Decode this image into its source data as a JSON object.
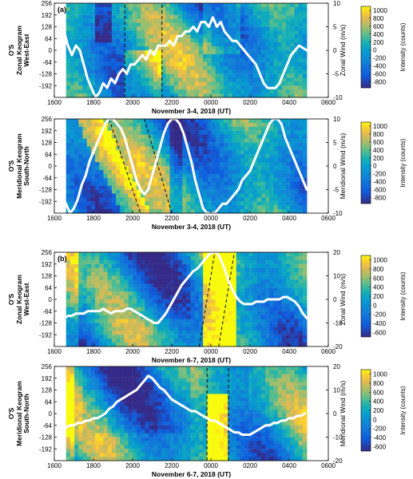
{
  "chart_data": [
    {
      "type": "heatmap",
      "panel_label": "(a)",
      "xlabel": "November 3-4, 2018 (UT)",
      "ylabel_lines": [
        "O'S",
        "Zonal Keogram",
        "West-East"
      ],
      "y2label": "Zonal Wind (m/s)",
      "cbar_label": "Intensity (counts)",
      "x_ticks": [
        "1600",
        "1800",
        "2000",
        "2200",
        "0000",
        "0200",
        "0400",
        "0600"
      ],
      "y_ticks": [
        256,
        192,
        128,
        64,
        0,
        -64,
        -128,
        -192
      ],
      "y2_ticks": [
        10,
        5,
        0,
        -5,
        -10
      ],
      "ylim": [
        -256,
        256
      ],
      "y2lim": [
        -10,
        10
      ],
      "cbar_ticks": [
        1000,
        800,
        600,
        400,
        200,
        0,
        -200,
        -400,
        -600,
        -800
      ],
      "clim": [
        -950,
        1100
      ],
      "dashed_lines": [
        [
          19.6,
          19.6,
          -256,
          256
        ],
        [
          21.5,
          21.5,
          -256,
          256
        ]
      ],
      "wind_series": {
        "name": "",
        "x": [
          16.5,
          16.7,
          16.9,
          17.1,
          17.3,
          17.5,
          17.7,
          17.9,
          18.1,
          18.3,
          18.5,
          18.7,
          18.9,
          19.1,
          19.3,
          19.5,
          19.7,
          19.9,
          20.1,
          20.3,
          20.5,
          20.7,
          20.9,
          21.1,
          21.3,
          21.5,
          21.7,
          21.9,
          22.1,
          22.3,
          22.5,
          22.7,
          22.9,
          23.1,
          23.3,
          23.5,
          23.7,
          23.9,
          24.1,
          24.3,
          24.5,
          24.7,
          24.9,
          25.1,
          25.3,
          25.5,
          25.7,
          25.9,
          26.1,
          26.3,
          26.5,
          26.7,
          26.9,
          27.1,
          27.3,
          27.5,
          27.7,
          27.9,
          28.1,
          28.3,
          28.5,
          28.7,
          28.9
        ],
        "y": [
          4,
          1,
          -1,
          1,
          0,
          -3,
          -6,
          -8,
          -10,
          -9,
          -7,
          -8,
          -6,
          -7,
          -5,
          -4,
          -5,
          -3,
          -3,
          -2,
          -1,
          -2,
          0,
          -1,
          1,
          1,
          1,
          2,
          1,
          3,
          3,
          4,
          4,
          5,
          4,
          6,
          6,
          5,
          7,
          5,
          6,
          4,
          3,
          2,
          2,
          1,
          0,
          -1,
          -2,
          -3,
          -5,
          -7,
          -8,
          -8,
          -8,
          -7,
          -5,
          -3,
          -1,
          0,
          1,
          0.5,
          0
        ]
      }
    },
    {
      "type": "heatmap",
      "panel_label": "",
      "xlabel": "November 3-4, 2018 (UT)",
      "ylabel_lines": [
        "O'S",
        "Meridional Keogram",
        "South-North"
      ],
      "y2label": "Meridional Wind (m/s)",
      "cbar_label": "Intensity (counts)",
      "x_ticks": [
        "1600",
        "1800",
        "2000",
        "2200",
        "0000",
        "0200",
        "0400",
        "0600"
      ],
      "y_ticks": [
        256,
        192,
        128,
        64,
        0,
        -64,
        -128,
        -192
      ],
      "y2_ticks": [
        10,
        5,
        0,
        -5,
        -10
      ],
      "ylim": [
        -256,
        256
      ],
      "y2lim": [
        -10,
        10
      ],
      "cbar_ticks": [
        1000,
        800,
        600,
        400,
        200,
        0,
        -200,
        -400,
        -600,
        -800
      ],
      "clim": [
        -950,
        1100
      ],
      "dashed_lines": [
        [
          18.8,
          20.4,
          256,
          -256
        ],
        [
          20.6,
          22.0,
          256,
          -256
        ]
      ],
      "wind_series": {
        "name": "",
        "x": [
          16.6,
          16.8,
          17.0,
          17.2,
          17.4,
          17.6,
          17.8,
          18.0,
          18.2,
          18.4,
          18.6,
          18.8,
          19.0,
          19.2,
          19.4,
          19.6,
          19.8,
          20.0,
          20.2,
          20.4,
          20.6,
          20.8,
          21.0,
          21.2,
          21.4,
          21.6,
          21.8,
          22.0,
          22.2,
          22.4,
          22.6,
          22.8,
          23.0,
          23.2,
          23.4,
          23.6,
          23.8,
          24.0,
          24.2,
          24.4,
          24.6,
          24.8,
          25.0,
          25.2,
          25.4,
          25.6,
          25.8,
          26.0,
          26.2,
          26.4,
          26.6,
          26.8,
          27.0,
          27.2,
          27.4,
          27.6,
          27.8,
          28.0,
          28.2,
          28.4,
          28.6,
          28.8,
          28.9
        ],
        "y": [
          -8,
          -10,
          -9,
          -7,
          -4,
          -2,
          1,
          3,
          5,
          7,
          9,
          10,
          10,
          9,
          8,
          6,
          3,
          0,
          -3,
          -5,
          -6,
          -5,
          -2,
          1,
          4,
          7,
          9,
          10,
          10,
          9,
          7,
          4,
          1,
          -3,
          -6,
          -9,
          -10,
          -10,
          -10,
          -9,
          -8,
          -8,
          -7,
          -6,
          -5,
          -3,
          -2,
          -1,
          1,
          3,
          5,
          7,
          9,
          10,
          10,
          9,
          6,
          4,
          2,
          0,
          -2,
          -4,
          -5
        ]
      }
    },
    {
      "type": "heatmap",
      "panel_label": "(b)",
      "xlabel": "November 6-7, 2018 (UT)",
      "ylabel_lines": [
        "O'S",
        "Zonal Keogram",
        "West-East"
      ],
      "y2label": "Zonal Wind (m/s)",
      "cbar_label": "Intensity (counts)",
      "x_ticks": [
        "1600",
        "1800",
        "2000",
        "2200",
        "0000",
        "0200",
        "0400",
        "0600"
      ],
      "y_ticks": [
        256,
        192,
        128,
        64,
        0,
        -64,
        -128,
        -192
      ],
      "y2_ticks": [
        20,
        10,
        0,
        -10,
        -20
      ],
      "ylim": [
        -256,
        256
      ],
      "y2lim": [
        -20,
        20
      ],
      "cbar_ticks": [
        1000,
        800,
        600,
        400,
        200,
        0,
        -200,
        -400,
        -600
      ],
      "clim": [
        -700,
        1100
      ],
      "dashed_lines": [
        [
          23.4,
          24.2,
          -256,
          256
        ],
        [
          24.4,
          25.2,
          -256,
          256
        ]
      ],
      "wind_series": {
        "name": "",
        "x": [
          16.5,
          16.7,
          16.9,
          17.1,
          17.3,
          17.5,
          17.7,
          17.9,
          18.1,
          18.3,
          18.5,
          18.7,
          18.9,
          19.1,
          19.3,
          19.5,
          19.7,
          19.9,
          20.1,
          20.3,
          20.5,
          20.7,
          20.9,
          21.1,
          21.3,
          21.5,
          21.7,
          21.9,
          22.1,
          22.3,
          22.5,
          22.7,
          22.9,
          23.1,
          23.3,
          23.5,
          23.7,
          23.9,
          24.1,
          24.3,
          24.5,
          24.7,
          24.9,
          25.1,
          25.3,
          25.5,
          25.7,
          25.9,
          26.1,
          26.3,
          26.5,
          26.7,
          26.9,
          27.1,
          27.3,
          27.5,
          27.7,
          27.9,
          28.1,
          28.3,
          28.5,
          28.7,
          28.9
        ],
        "y": [
          -8,
          -7,
          -7,
          -6,
          -6,
          -6,
          -5,
          -5,
          -5,
          -5,
          -4,
          -5,
          -6,
          -5,
          -5,
          -5,
          -4,
          -4,
          -5,
          -6,
          -7,
          -8,
          -9,
          -10,
          -10,
          -8,
          -6,
          -3,
          0,
          3,
          6,
          8,
          10,
          12,
          13,
          15,
          17,
          19,
          20,
          20,
          17,
          13,
          8,
          4,
          1,
          -1,
          -2,
          -2,
          -2,
          -1,
          -1,
          -1,
          0,
          0,
          0,
          0,
          1,
          1,
          0,
          -1,
          -3,
          -6,
          -8
        ]
      }
    },
    {
      "type": "heatmap",
      "panel_label": "",
      "xlabel": "November 6-7, 2018 (UT)",
      "ylabel_lines": [
        "O'S",
        "Meridional Keogram",
        "South-North"
      ],
      "y2label": "Meridional Wind (m/s)",
      "cbar_label": "Intensity (counts)",
      "x_ticks": [
        "1600",
        "1800",
        "2000",
        "2200",
        "0000",
        "0200",
        "0400",
        "0600"
      ],
      "y_ticks": [
        256,
        192,
        128,
        64,
        0,
        -64,
        -128,
        -192
      ],
      "y2_ticks": [
        20,
        10,
        0,
        -10,
        -20
      ],
      "ylim": [
        -256,
        256
      ],
      "y2lim": [
        -20,
        20
      ],
      "cbar_ticks": [
        1000,
        800,
        600,
        400,
        200,
        0,
        -200,
        -400,
        -600
      ],
      "clim": [
        -700,
        1100
      ],
      "dashed_lines": [
        [
          23.8,
          23.8,
          -256,
          256
        ],
        [
          24.9,
          24.9,
          -256,
          256
        ]
      ],
      "wind_series": {
        "name": "",
        "x": [
          16.6,
          16.8,
          17.0,
          17.2,
          17.4,
          17.6,
          17.8,
          18.0,
          18.2,
          18.4,
          18.6,
          18.8,
          19.0,
          19.2,
          19.4,
          19.6,
          19.8,
          20.0,
          20.2,
          20.4,
          20.6,
          20.8,
          21.0,
          21.2,
          21.4,
          21.6,
          21.8,
          22.0,
          22.2,
          22.4,
          22.6,
          22.8,
          23.0,
          23.2,
          23.4,
          23.6,
          23.8,
          24.0,
          24.2,
          24.4,
          24.6,
          24.8,
          25.0,
          25.2,
          25.4,
          25.6,
          25.8,
          26.0,
          26.2,
          26.4,
          26.6,
          26.8,
          27.0,
          27.2,
          27.4,
          27.6,
          27.8,
          28.0,
          28.2,
          28.4,
          28.6,
          28.8
        ],
        "y": [
          -6,
          -5,
          -5,
          -4,
          -4,
          -3,
          -3,
          -2,
          -2,
          -1,
          0,
          2,
          3,
          5,
          6,
          7,
          8,
          9,
          10,
          12,
          14,
          16,
          15,
          13,
          11,
          10,
          8,
          6,
          5,
          4,
          3,
          2,
          1,
          1,
          0,
          -1,
          -2,
          -3,
          -3,
          -4,
          -5,
          -6,
          -7,
          -8,
          -8,
          -9,
          -9,
          -9,
          -8,
          -7,
          -6,
          -5,
          -5,
          -4,
          -4,
          -3,
          -3,
          -2,
          -2,
          -1,
          -1,
          0
        ]
      }
    }
  ]
}
